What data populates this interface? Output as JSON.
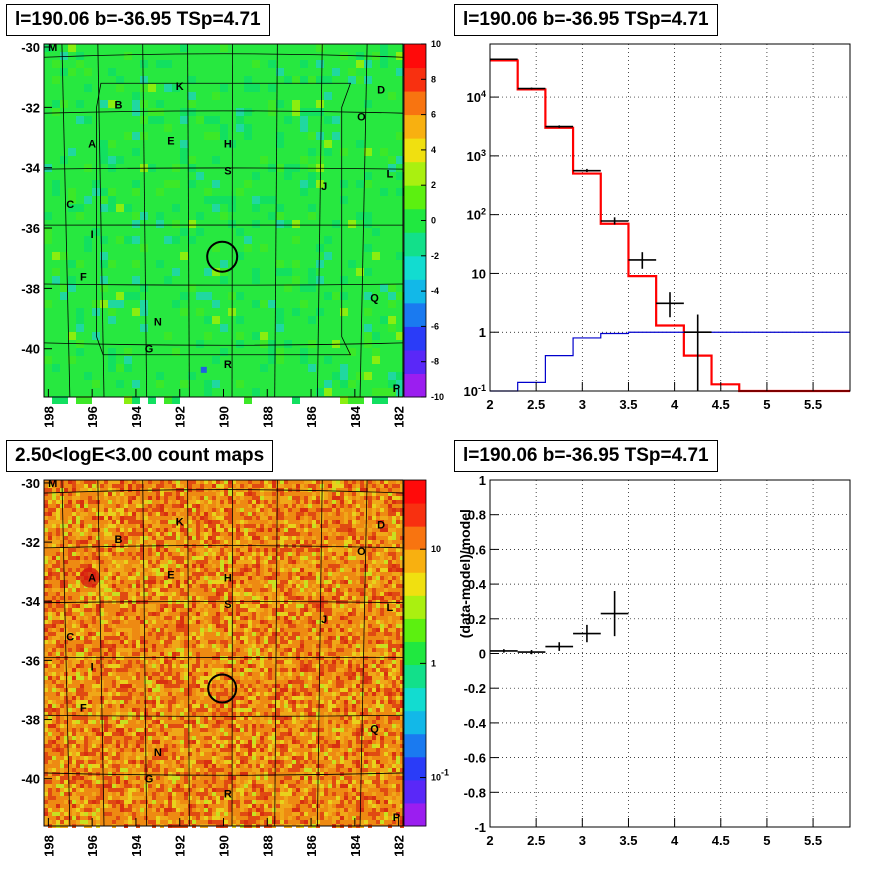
{
  "panels": {
    "top_left_title": "l=190.06 b=-36.95 TSp=4.71",
    "top_right_title": "l=190.06 b=-36.95 TSp=4.71",
    "bottom_left_title": "2.50<logE<3.00 count maps",
    "bottom_right_title": "l=190.06 b=-36.95 TSp=4.71"
  },
  "colors": {
    "tsmap_bg": "#27e840",
    "countmap_bg": "#ee8a12",
    "model_red": "#ff0000",
    "model_blue": "#0000cc",
    "data_black": "#000000",
    "circle": "#000000"
  },
  "chart_data": [
    {
      "type": "heatmap",
      "name": "ts-map",
      "xticks": [
        "198",
        "196",
        "194",
        "192",
        "190",
        "188",
        "186",
        "184",
        "182"
      ],
      "yticks": [
        "-30",
        "-32",
        "-34",
        "-36",
        "-38",
        "-40"
      ],
      "xlim": [
        198.2,
        181.8
      ],
      "ylim": [
        -41.6,
        -29.9
      ],
      "colorbar_ticks": [
        "10",
        "8",
        "6",
        "4",
        "2",
        "0",
        "-2",
        "-4",
        "-6",
        "-8",
        "-10"
      ],
      "colorbar_range": [
        -10,
        10
      ],
      "source_labels": [
        "M",
        "K",
        "D",
        "B",
        "O",
        "A",
        "E",
        "H",
        "L",
        "S",
        "C",
        "J",
        "I",
        "F",
        "Q",
        "N",
        "G",
        "R",
        "P"
      ],
      "marker": {
        "l": 190.06,
        "b": -36.95
      }
    },
    {
      "type": "line",
      "name": "spectrum",
      "x_ticks": [
        "2",
        "2.5",
        "3",
        "3.5",
        "4",
        "4.5",
        "5",
        "5.5"
      ],
      "y_ticks": [
        "10^-1",
        "1",
        "10",
        "10^2",
        "10^3",
        "10^4"
      ],
      "xlim": [
        2,
        5.9
      ],
      "ylim": [
        0.1,
        80000
      ],
      "yscale": "log",
      "series": [
        {
          "style": "red-step",
          "edges": [
            2.0,
            2.3,
            2.6,
            2.9,
            3.2,
            3.5,
            3.8,
            4.1,
            4.4,
            4.7,
            5.9
          ],
          "values": [
            42000,
            13500,
            3000,
            500,
            70,
            9,
            1.3,
            0.4,
            0.13,
            0.1
          ]
        },
        {
          "style": "blue-step",
          "edges": [
            2.0,
            2.3,
            2.6,
            2.9,
            3.2,
            3.5,
            3.8,
            4.1,
            4.4,
            4.7,
            5.9
          ],
          "values": [
            0.1,
            0.14,
            0.4,
            0.8,
            0.95,
            1.0,
            1.0,
            1.0,
            1.0,
            1.0
          ]
        },
        {
          "style": "black-data",
          "points": [
            {
              "x": 2.15,
              "y": 44000,
              "xerr": 0.15,
              "ylo": 43000,
              "yhi": 45000
            },
            {
              "x": 2.45,
              "y": 14000,
              "xerr": 0.15,
              "ylo": 13500,
              "yhi": 14500
            },
            {
              "x": 2.75,
              "y": 3150,
              "xerr": 0.15,
              "ylo": 3000,
              "yhi": 3300
            },
            {
              "x": 3.05,
              "y": 560,
              "xerr": 0.15,
              "ylo": 530,
              "yhi": 600
            },
            {
              "x": 3.35,
              "y": 78,
              "xerr": 0.15,
              "ylo": 68,
              "yhi": 90
            },
            {
              "x": 3.65,
              "y": 17,
              "xerr": 0.15,
              "ylo": 12,
              "yhi": 23
            },
            {
              "x": 3.95,
              "y": 3.1,
              "xerr": 0.15,
              "ylo": 1.8,
              "yhi": 4.8
            },
            {
              "x": 4.25,
              "y": 1.0,
              "xerr": 0.15,
              "ylo": 0.1,
              "yhi": 2.0
            }
          ]
        }
      ]
    },
    {
      "type": "heatmap",
      "name": "count-map",
      "xticks": [
        "198",
        "196",
        "194",
        "192",
        "190",
        "188",
        "186",
        "184",
        "182"
      ],
      "yticks": [
        "-30",
        "-32",
        "-34",
        "-36",
        "-38",
        "-40"
      ],
      "xlim": [
        198.2,
        181.8
      ],
      "ylim": [
        -41.6,
        -29.9
      ],
      "colorbar_ticks": [
        "10",
        "1",
        "10^-1"
      ],
      "colorbar_scale": "log",
      "source_labels": [
        "M",
        "K",
        "D",
        "B",
        "O",
        "A",
        "E",
        "H",
        "L",
        "S",
        "C",
        "J",
        "I",
        "F",
        "Q",
        "N",
        "G",
        "R",
        "P"
      ],
      "marker": {
        "l": 190.06,
        "b": -36.95
      }
    },
    {
      "type": "scatter",
      "name": "residuals",
      "ylabel": "(data-model)/model",
      "x_ticks": [
        "2",
        "2.5",
        "3",
        "3.5",
        "4",
        "4.5",
        "5",
        "5.5"
      ],
      "y_ticks": [
        "1",
        "0.8",
        "0.6",
        "0.4",
        "0.2",
        "0",
        "-0.2",
        "-0.4",
        "-0.6",
        "-0.8",
        "-1"
      ],
      "xlim": [
        2,
        5.9
      ],
      "ylim": [
        -1,
        1
      ],
      "points": [
        {
          "x": 2.15,
          "y": 0.015,
          "xerr": 0.15,
          "yerr": 0.01
        },
        {
          "x": 2.45,
          "y": 0.008,
          "xerr": 0.15,
          "yerr": 0.012
        },
        {
          "x": 2.75,
          "y": 0.04,
          "xerr": 0.15,
          "yerr": 0.025
        },
        {
          "x": 3.05,
          "y": 0.115,
          "xerr": 0.15,
          "yerr": 0.05
        },
        {
          "x": 3.35,
          "y": 0.23,
          "xerr": 0.15,
          "yerr": 0.13
        }
      ]
    }
  ]
}
